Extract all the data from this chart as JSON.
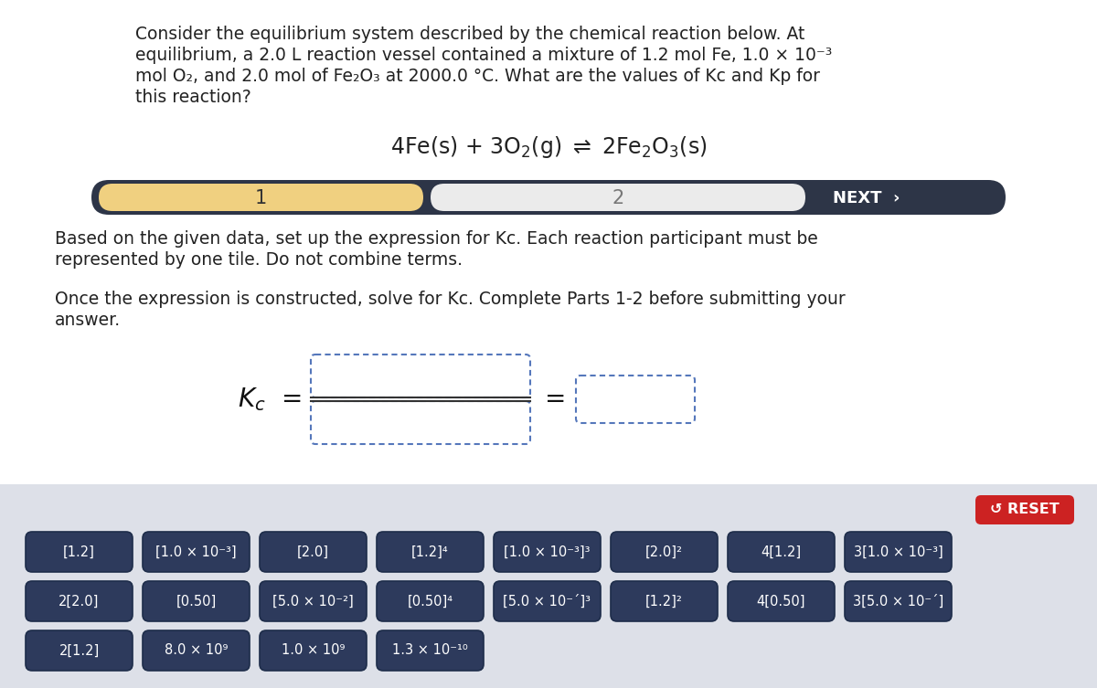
{
  "white_bg": "#ffffff",
  "panel_bg": "#dde0e8",
  "tile_bg": "#2d3a5c",
  "tile_border": "#1e2d4a",
  "step_bar_bg": "#2d3547",
  "step1_bg": "#f0d080",
  "step2_bg": "#ebebeb",
  "reset_bg": "#cc2222",
  "box_border": "#5577bb",
  "tiles_row1": [
    "[1.2]",
    "[1.0 × 10⁻³]",
    "[2.0]",
    "[1.2]⁴",
    "[1.0 × 10⁻³]³",
    "[2.0]²",
    "4[1.2]",
    "3[1.0 × 10⁻³]"
  ],
  "tiles_row2": [
    "2[2.0]",
    "[0.50]",
    "[5.0 × 10⁻²]",
    "[0.50]⁴",
    "[5.0 × 10⁻´]³",
    "[1.2]²",
    "4[0.50]",
    "3[5.0 × 10⁻´]"
  ],
  "tiles_row3": [
    "2[1.2]",
    "8.0 × 10⁹",
    "1.0 × 10⁹",
    "1.3 × 10⁻¹⁰"
  ]
}
